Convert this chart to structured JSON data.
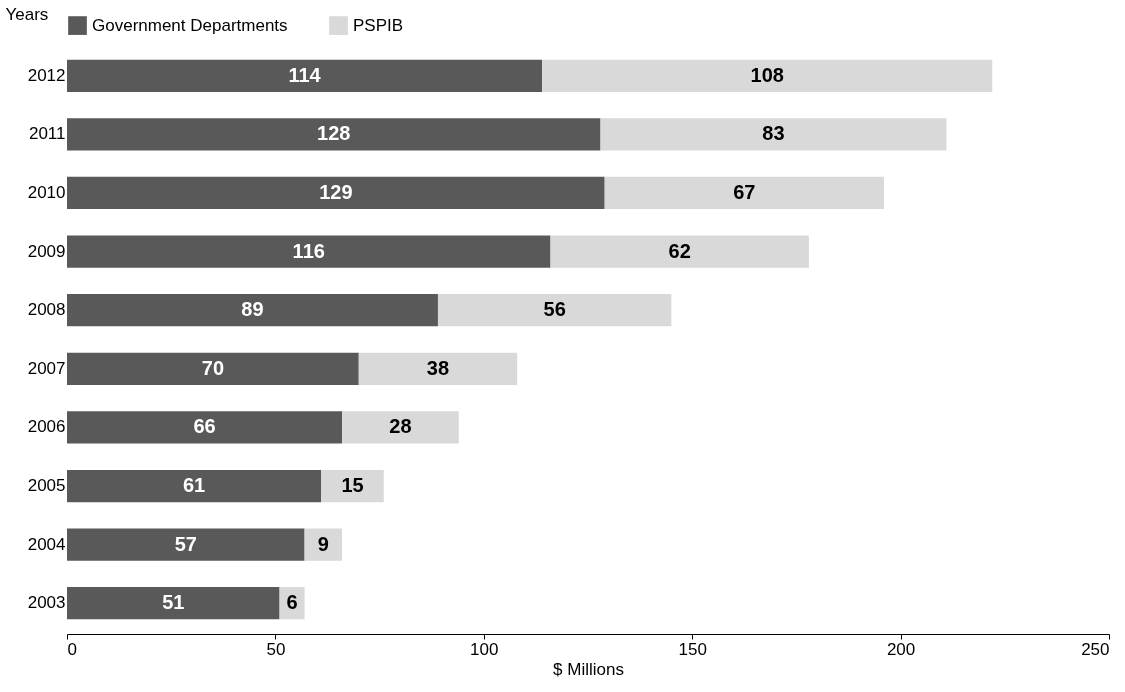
{
  "chart_data": {
    "type": "bar",
    "orientation": "horizontal",
    "stacked": true,
    "ylabel": "Years",
    "xlabel": "$ Millions",
    "categories": [
      "2012",
      "2011",
      "2010",
      "2009",
      "2008",
      "2007",
      "2006",
      "2005",
      "2004",
      "2003"
    ],
    "series": [
      {
        "name": "Government Departments",
        "color": "#595959",
        "values": [
          114,
          128,
          129,
          116,
          89,
          70,
          66,
          61,
          57,
          51
        ]
      },
      {
        "name": "PSPIB",
        "color": "#d9d9d9",
        "values": [
          108,
          83,
          67,
          62,
          56,
          38,
          28,
          15,
          9,
          6
        ]
      }
    ],
    "xlim": [
      0,
      250
    ],
    "xticks": [
      0,
      50,
      100,
      150,
      200,
      250
    ],
    "grid": false,
    "legend": "top",
    "data_labels": true
  }
}
